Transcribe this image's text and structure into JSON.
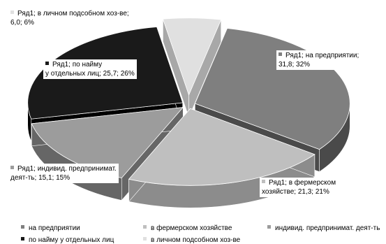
{
  "chart_data": {
    "type": "pie",
    "style": "3d-exploded",
    "series_name": "Ряд1",
    "slices": [
      {
        "category": "на предприятии",
        "value": 31.8,
        "percent": "32%",
        "color": "#7f7f7f",
        "side_color": "#4a4a4a",
        "label": "Ряд1; на предприятии;\n31,8; 32%"
      },
      {
        "category": "в фермерском хозяйстве",
        "value": 21.3,
        "percent": "21%",
        "color": "#bfbfbf",
        "side_color": "#8c8c8c",
        "label": "Ряд1; в фермерском\nхозяйстве; 21,3; 21%"
      },
      {
        "category": "индивид. предпринимат. деят-ть",
        "value": 15.1,
        "percent": "15%",
        "color": "#9c9c9c",
        "side_color": "#666666",
        "label": "Ряд1; индивид. предпринимат.\nдеят-ть; 15,1; 15%"
      },
      {
        "category": "по найму у отдельных лиц",
        "value": 25.7,
        "percent": "26%",
        "color": "#1a1a1a",
        "side_color": "#000000",
        "label": "Ряд1; по найму\nу отдельных лиц; 25,7; 26%"
      },
      {
        "category": "в личном подсобном хоз-ве",
        "value": 6.0,
        "percent": "6%",
        "color": "#e0e0e0",
        "side_color": "#a8a8a8",
        "label": "Ряд1; в личном подсобном хоз-ве;\n6,0; 6%"
      }
    ],
    "legend_position": "bottom"
  }
}
